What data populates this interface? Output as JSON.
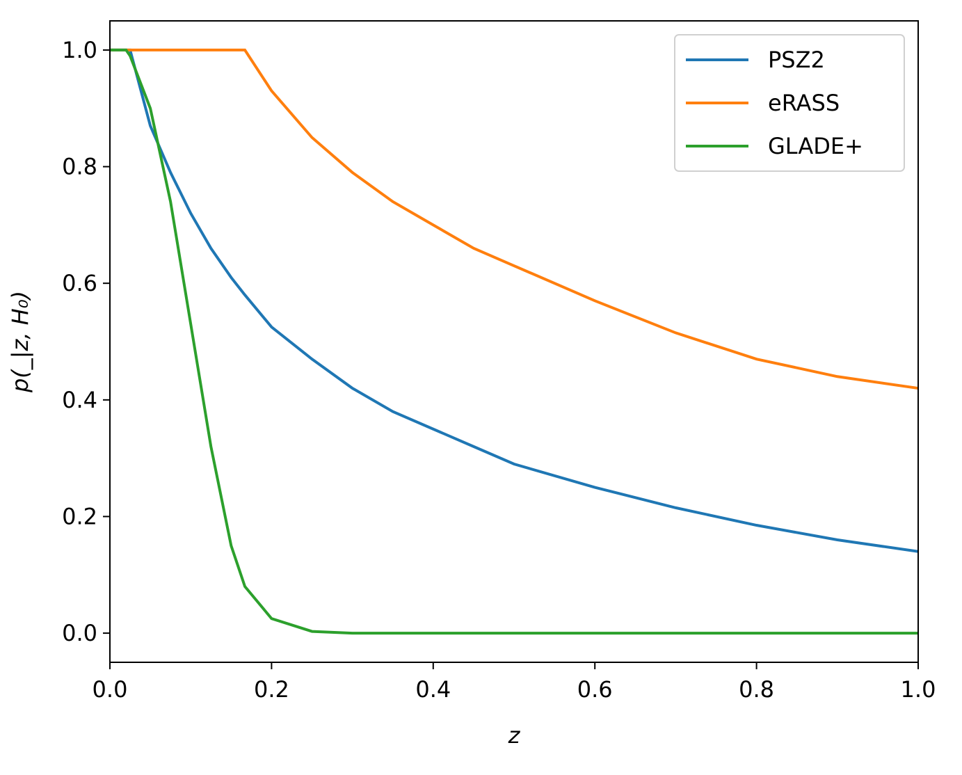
{
  "chart_data": {
    "type": "line",
    "xlabel": "z",
    "ylabel": "p(_|z, H₀)",
    "x": [
      0,
      0.02,
      0.025,
      0.05,
      0.075,
      0.1,
      0.125,
      0.15,
      0.167,
      0.2,
      0.25,
      0.3,
      0.35,
      0.4,
      0.45,
      0.5,
      0.6,
      0.7,
      0.8,
      0.9,
      1.0
    ],
    "series": [
      {
        "name": "PSZ2",
        "color": "#1f77b4",
        "values": [
          1,
          1,
          1,
          0.87,
          0.79,
          0.72,
          0.66,
          0.61,
          0.58,
          0.525,
          0.47,
          0.42,
          0.38,
          0.35,
          0.32,
          0.29,
          0.25,
          0.215,
          0.185,
          0.16,
          0.14
        ]
      },
      {
        "name": "eRASS",
        "color": "#ff7f0e",
        "values": [
          1,
          1,
          1,
          1,
          1,
          1,
          1,
          1,
          1,
          0.93,
          0.85,
          0.79,
          0.74,
          0.7,
          0.66,
          0.63,
          0.57,
          0.515,
          0.47,
          0.44,
          0.42
        ]
      },
      {
        "name": "GLADE+",
        "color": "#2ca02c",
        "values": [
          1,
          1,
          0.99,
          0.9,
          0.74,
          0.53,
          0.32,
          0.15,
          0.08,
          0.025,
          0.003,
          0,
          0,
          0,
          0,
          0,
          0,
          0,
          0,
          0,
          0
        ]
      }
    ],
    "xlim": [
      0,
      1
    ],
    "xticks": [
      {
        "value": 0,
        "label": "0.0"
      },
      0.2,
      0.4,
      0.6,
      0.8,
      {
        "value": 1,
        "label": "1.0"
      }
    ],
    "ylim": [
      -0.05,
      1.05
    ],
    "yticks": [
      {
        "value": 0,
        "label": "0.0"
      },
      0.2,
      0.4,
      0.6,
      0.8,
      {
        "value": 1,
        "label": "1.0"
      }
    ],
    "legend": "upper right"
  }
}
